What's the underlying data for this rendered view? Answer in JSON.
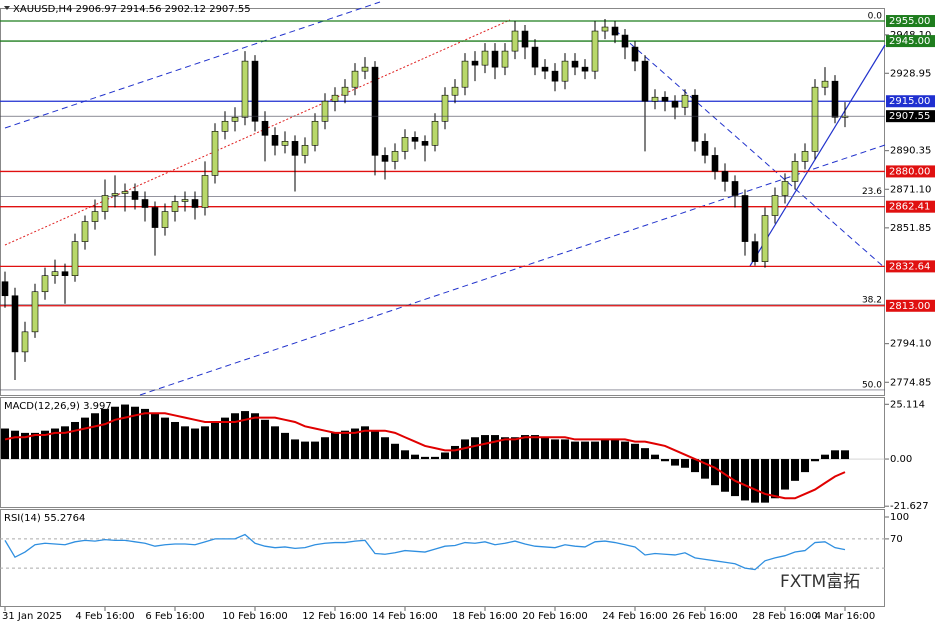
{
  "chart_data": [
    {
      "type": "candlestick",
      "title": "XAUUSD,H4  2906.97 2914.56 2902.12 2907.55",
      "categories": [
        "31 Jan 2025",
        null,
        null,
        null,
        null,
        null,
        null,
        null,
        null,
        null,
        "4 Feb 16:00",
        null,
        null,
        null,
        null,
        null,
        null,
        "6 Feb 16:00",
        null,
        null,
        null,
        null,
        null,
        null,
        null,
        "10 Feb 16:00",
        null,
        null,
        null,
        null,
        null,
        null,
        null,
        "12 Feb 16:00",
        null,
        null,
        null,
        null,
        null,
        null,
        "14 Feb 16:00",
        null,
        null,
        null,
        null,
        null,
        null,
        null,
        "18 Feb 16:00",
        null,
        null,
        null,
        null,
        null,
        null,
        "20 Feb 16:00",
        null,
        null,
        null,
        null,
        null,
        null,
        null,
        "24 Feb 16:00",
        null,
        null,
        null,
        null,
        null,
        null,
        "26 Feb 16:00",
        null,
        null,
        null,
        null,
        null,
        null,
        null,
        "28 Feb 16:00",
        null,
        null,
        null,
        null,
        null,
        "4 Mar 16:00"
      ],
      "ohlc": [
        [
          2825,
          2830,
          2812,
          2818
        ],
        [
          2818,
          2822,
          2776,
          2790
        ],
        [
          2790,
          2805,
          2785,
          2800
        ],
        [
          2800,
          2824,
          2797,
          2820
        ],
        [
          2820,
          2832,
          2816,
          2828
        ],
        [
          2828,
          2836,
          2824,
          2830
        ],
        [
          2830,
          2834,
          2814,
          2828
        ],
        [
          2828,
          2849,
          2825,
          2845
        ],
        [
          2845,
          2858,
          2841,
          2855
        ],
        [
          2855,
          2866,
          2851,
          2860
        ],
        [
          2860,
          2876,
          2856,
          2868
        ],
        [
          2868,
          2878,
          2862,
          2869
        ],
        [
          2869,
          2874,
          2860,
          2870
        ],
        [
          2870,
          2874,
          2861,
          2866
        ],
        [
          2866,
          2870,
          2855,
          2862
        ],
        [
          2862,
          2865,
          2838,
          2852
        ],
        [
          2852,
          2864,
          2848,
          2860
        ],
        [
          2860,
          2868,
          2855,
          2865
        ],
        [
          2865,
          2870,
          2860,
          2866
        ],
        [
          2866,
          2870,
          2856,
          2862
        ],
        [
          2862,
          2885,
          2858,
          2878
        ],
        [
          2878,
          2904,
          2874,
          2900
        ],
        [
          2900,
          2910,
          2896,
          2905
        ],
        [
          2905,
          2912,
          2900,
          2907
        ],
        [
          2907,
          2940,
          2903,
          2935
        ],
        [
          2935,
          2938,
          2900,
          2905
        ],
        [
          2905,
          2910,
          2885,
          2898
        ],
        [
          2898,
          2902,
          2888,
          2893
        ],
        [
          2893,
          2900,
          2889,
          2895
        ],
        [
          2895,
          2898,
          2870,
          2888
        ],
        [
          2888,
          2897,
          2884,
          2893
        ],
        [
          2893,
          2909,
          2890,
          2905
        ],
        [
          2905,
          2919,
          2901,
          2915
        ],
        [
          2915,
          2922,
          2910,
          2918
        ],
        [
          2918,
          2926,
          2914,
          2922
        ],
        [
          2922,
          2934,
          2918,
          2930
        ],
        [
          2930,
          2937,
          2926,
          2932
        ],
        [
          2932,
          2935,
          2878,
          2888
        ],
        [
          2888,
          2892,
          2876,
          2885
        ],
        [
          2885,
          2894,
          2881,
          2890
        ],
        [
          2890,
          2901,
          2886,
          2897
        ],
        [
          2897,
          2900,
          2891,
          2895
        ],
        [
          2895,
          2898,
          2885,
          2893
        ],
        [
          2893,
          2909,
          2890,
          2905
        ],
        [
          2905,
          2922,
          2901,
          2918
        ],
        [
          2918,
          2926,
          2914,
          2922
        ],
        [
          2922,
          2939,
          2918,
          2935
        ],
        [
          2935,
          2940,
          2925,
          2933
        ],
        [
          2933,
          2944,
          2929,
          2940
        ],
        [
          2940,
          2944,
          2926,
          2932
        ],
        [
          2932,
          2944,
          2928,
          2940
        ],
        [
          2940,
          2955,
          2936,
          2950
        ],
        [
          2950,
          2953,
          2936,
          2942
        ],
        [
          2942,
          2946,
          2928,
          2932
        ],
        [
          2932,
          2936,
          2926,
          2930
        ],
        [
          2930,
          2934,
          2920,
          2925
        ],
        [
          2925,
          2939,
          2921,
          2935
        ],
        [
          2935,
          2939,
          2928,
          2932
        ],
        [
          2932,
          2936,
          2926,
          2930
        ],
        [
          2930,
          2955,
          2926,
          2950
        ],
        [
          2950,
          2956,
          2946,
          2952
        ],
        [
          2952,
          2955,
          2944,
          2948
        ],
        [
          2948,
          2951,
          2936,
          2942
        ],
        [
          2942,
          2945,
          2930,
          2935
        ],
        [
          2935,
          2938,
          2890,
          2915
        ],
        [
          2915,
          2921,
          2911,
          2917
        ],
        [
          2917,
          2920,
          2910,
          2915
        ],
        [
          2915,
          2918,
          2906,
          2912
        ],
        [
          2912,
          2921,
          2908,
          2918
        ],
        [
          2918,
          2921,
          2890,
          2895
        ],
        [
          2895,
          2899,
          2884,
          2888
        ],
        [
          2888,
          2892,
          2876,
          2880
        ],
        [
          2880,
          2884,
          2870,
          2875
        ],
        [
          2875,
          2878,
          2862,
          2868
        ],
        [
          2868,
          2871,
          2838,
          2845
        ],
        [
          2845,
          2849,
          2833,
          2835
        ],
        [
          2835,
          2862,
          2832,
          2858
        ],
        [
          2858,
          2872,
          2854,
          2868
        ],
        [
          2868,
          2879,
          2864,
          2875
        ],
        [
          2875,
          2889,
          2871,
          2885
        ],
        [
          2885,
          2894,
          2881,
          2890
        ],
        [
          2890,
          2926,
          2886,
          2922
        ],
        [
          2922,
          2932,
          2918,
          2925
        ],
        [
          2925,
          2928,
          2904,
          2907
        ],
        [
          2906.97,
          2914.56,
          2902.12,
          2907.55
        ]
      ],
      "up_color": "#b8d86a",
      "down_color": "#000000",
      "ylim": [
        2768.5,
        2961
      ],
      "yticks": [
        {
          "value": 2948.1,
          "label": "2948.10"
        },
        2928.95,
        2890.35,
        {
          "value": 2871.1,
          "label": "2871.10"
        },
        2851.85,
        {
          "value": 2794.1,
          "label": "2794.10"
        },
        2774.85
      ],
      "levels": [
        {
          "value": 2955,
          "label": "2955.00",
          "color": "#1e7d1e"
        },
        {
          "value": 2945,
          "label": "2945.00",
          "color": "#1e7d1e"
        },
        {
          "value": 2915,
          "label": "2915.00",
          "color": "#1f2fd0"
        },
        {
          "value": 2880,
          "label": "2880.00",
          "color": "#e01010"
        },
        {
          "value": 2862.41,
          "label": "2862.41",
          "color": "#e01010"
        },
        {
          "value": 2832.64,
          "label": "2832.64",
          "color": "#e01010"
        },
        {
          "value": 2813,
          "label": "2813.00",
          "color": "#e01010"
        }
      ],
      "last_price": {
        "value": 2907.55,
        "label": "2907.55",
        "color": "#000000"
      },
      "fib_labels": [
        {
          "value": 2955,
          "label": "0.0"
        },
        {
          "value": 2867.5,
          "label": "23.6"
        },
        {
          "value": 2813.5,
          "label": "38.2"
        },
        {
          "value": 2771,
          "label": "50.0"
        }
      ],
      "watermark": "FXTM富拓"
    },
    {
      "type": "macd",
      "title": "MACD(12,26,9) 3.997",
      "color": "#000000",
      "signal_color": "#e00000",
      "values": [
        14,
        13,
        12,
        12,
        13,
        14,
        15,
        17,
        19,
        21,
        23,
        24,
        25,
        24,
        23,
        21,
        19,
        17,
        15,
        14,
        15,
        17,
        19,
        21,
        22,
        21,
        18,
        15,
        12,
        9,
        8,
        8,
        10,
        12,
        13,
        14,
        15,
        13,
        10,
        7,
        4,
        2,
        1,
        1,
        3,
        6,
        9,
        10,
        11,
        11,
        10,
        10,
        11,
        11,
        10,
        9,
        9,
        8,
        8,
        8,
        9,
        9,
        8,
        7,
        5,
        2,
        -1,
        -3,
        -4,
        -6,
        -9,
        -12,
        -15,
        -17,
        -19,
        -20,
        -20,
        -18,
        -14,
        -10,
        -6,
        -1,
        2,
        4,
        3.997
      ],
      "signal": [
        9,
        10,
        10,
        11,
        11,
        12,
        12,
        13,
        14,
        15,
        16,
        18,
        19,
        20,
        21,
        21,
        21,
        20,
        19,
        18,
        17,
        17,
        17,
        17,
        18,
        19,
        19,
        19,
        18,
        17,
        15,
        14,
        13,
        12,
        12,
        12,
        13,
        13,
        13,
        12,
        10,
        8,
        6,
        5,
        4,
        4,
        5,
        6,
        7,
        8,
        9,
        9,
        10,
        10,
        10,
        10,
        10,
        9,
        9,
        9,
        9,
        9,
        9,
        8,
        8,
        7,
        6,
        4,
        2,
        0,
        -2,
        -4,
        -7,
        -10,
        -12,
        -14,
        -16,
        -17,
        -18,
        -18,
        -16,
        -14,
        -11,
        -8,
        -6
      ],
      "ylim": [
        -22,
        28
      ],
      "yticks": [
        25.114,
        {
          "value": 0,
          "label": "0.00"
        },
        -21.627
      ]
    },
    {
      "type": "rsi",
      "title": "RSI(14) 55.2764",
      "color": "#2f8fe0",
      "values": [
        68,
        45,
        52,
        62,
        64,
        63,
        62,
        66,
        68,
        67,
        69,
        68,
        68,
        66,
        64,
        60,
        62,
        63,
        63,
        62,
        66,
        70,
        70,
        70,
        76,
        64,
        60,
        58,
        59,
        57,
        58,
        62,
        64,
        65,
        65,
        67,
        68,
        50,
        49,
        51,
        54,
        53,
        52,
        56,
        60,
        61,
        65,
        64,
        66,
        62,
        64,
        67,
        63,
        60,
        59,
        58,
        62,
        60,
        59,
        66,
        67,
        65,
        62,
        59,
        48,
        50,
        49,
        48,
        51,
        44,
        42,
        40,
        38,
        36,
        30,
        28,
        40,
        44,
        47,
        52,
        54,
        65,
        66,
        58,
        55.2764
      ],
      "ylim": [
        0,
        100
      ],
      "yticks": [
        100,
        70
      ],
      "dashed_levels": [
        70,
        30
      ]
    }
  ]
}
